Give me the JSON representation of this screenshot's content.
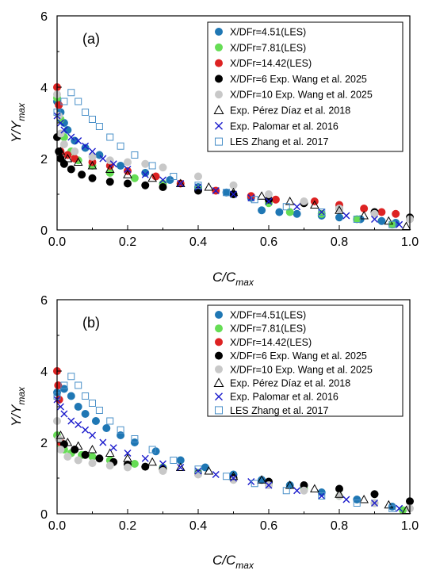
{
  "chart_data": [
    {
      "type": "scatter",
      "panel_label": "(a)",
      "xlabel_main": "C/C",
      "xlabel_sub": "max",
      "ylabel_main": "Y/Y",
      "ylabel_sub": "max",
      "xlim": [
        0,
        1
      ],
      "ylim": [
        0,
        6
      ],
      "xticks": [
        "0.0",
        "0.2",
        "0.4",
        "0.6",
        "0.8",
        "1.0"
      ],
      "yticks": [
        "0",
        "2",
        "4",
        "6"
      ],
      "legend_position": "top-right",
      "series": [
        {
          "name": "X/DFr=4.51(LES)",
          "marker": "circle",
          "color": "#1f77b4",
          "x": [
            0.0,
            0.01,
            0.02,
            0.03,
            0.05,
            0.08,
            0.12,
            0.18,
            0.25,
            0.32,
            0.4,
            0.48,
            0.55,
            0.58,
            0.63,
            0.68,
            0.75,
            0.8,
            0.86,
            0.92,
            0.96
          ],
          "y": [
            3.6,
            3.3,
            3.0,
            2.8,
            2.5,
            2.3,
            2.1,
            1.8,
            1.6,
            1.4,
            1.2,
            1.05,
            0.9,
            0.55,
            0.5,
            0.45,
            0.4,
            0.35,
            0.3,
            0.25,
            0.2
          ]
        },
        {
          "name": "X/DFr=7.81(LES)",
          "marker": "circle",
          "color": "#66dd55",
          "x": [
            0.0,
            0.01,
            0.02,
            0.04,
            0.06,
            0.1,
            0.15,
            0.22,
            0.3,
            0.4,
            0.5,
            0.6,
            0.66,
            0.75,
            0.85,
            0.95
          ],
          "y": [
            3.7,
            3.1,
            2.6,
            2.2,
            1.95,
            1.8,
            1.6,
            1.45,
            1.3,
            1.15,
            1.0,
            0.75,
            0.5,
            0.45,
            0.3,
            0.15
          ]
        },
        {
          "name": "X/DFr=14.42(LES)",
          "marker": "circle",
          "color": "#dd2222",
          "x": [
            0.0,
            0.005,
            0.01,
            0.03,
            0.05,
            0.1,
            0.15,
            0.2,
            0.28,
            0.35,
            0.45,
            0.55,
            0.62,
            0.73,
            0.8,
            0.87,
            0.92,
            0.96
          ],
          "y": [
            4.0,
            3.5,
            2.2,
            2.1,
            2.0,
            1.9,
            1.8,
            1.65,
            1.5,
            1.3,
            1.1,
            0.95,
            0.85,
            0.8,
            0.7,
            0.6,
            0.5,
            0.45
          ]
        },
        {
          "name": "X/DFr=6 Exp. Wang et al. 2025",
          "marker": "circle",
          "color": "#000000",
          "x": [
            0.0,
            0.005,
            0.01,
            0.02,
            0.04,
            0.07,
            0.1,
            0.15,
            0.2,
            0.25,
            0.3,
            0.4,
            0.5,
            0.6,
            0.7,
            0.8,
            0.9,
            1.0
          ],
          "y": [
            2.6,
            2.2,
            2.0,
            1.85,
            1.7,
            1.55,
            1.45,
            1.35,
            1.3,
            1.25,
            1.2,
            1.1,
            1.0,
            0.85,
            0.75,
            0.6,
            0.5,
            0.35
          ]
        },
        {
          "name": "X/DFr=10 Exp. Wang et al. 2025",
          "marker": "circle",
          "color": "#c8c8c8",
          "x": [
            0.0,
            0.005,
            0.01,
            0.02,
            0.05,
            0.1,
            0.15,
            0.2,
            0.25,
            0.3,
            0.4,
            0.5,
            0.6,
            0.7,
            0.8,
            0.9,
            1.0
          ],
          "y": [
            3.8,
            3.2,
            2.7,
            2.4,
            2.2,
            2.05,
            1.95,
            1.9,
            1.85,
            1.75,
            1.5,
            1.25,
            1.0,
            0.8,
            0.6,
            0.45,
            0.3
          ]
        },
        {
          "name": "Exp. Pérez Díaz et al. 2018",
          "marker": "triangle",
          "color": "#000000",
          "x": [
            0.01,
            0.03,
            0.06,
            0.1,
            0.15,
            0.2,
            0.27,
            0.35,
            0.43,
            0.5,
            0.58,
            0.66,
            0.73,
            0.8,
            0.87,
            0.94,
            0.99
          ],
          "y": [
            2.2,
            2.0,
            1.9,
            1.8,
            1.7,
            1.55,
            1.45,
            1.3,
            1.2,
            1.05,
            0.95,
            0.8,
            0.7,
            0.55,
            0.4,
            0.25,
            0.1
          ]
        },
        {
          "name": "Exp. Palomar et al. 2016",
          "marker": "x",
          "color": "#1a1acc",
          "x": [
            0.0,
            0.01,
            0.02,
            0.04,
            0.06,
            0.08,
            0.1,
            0.13,
            0.16,
            0.2,
            0.25,
            0.3,
            0.35,
            0.4,
            0.45,
            0.5,
            0.55,
            0.6,
            0.68,
            0.75,
            0.82,
            0.9,
            0.97
          ],
          "y": [
            3.2,
            3.0,
            2.8,
            2.6,
            2.5,
            2.35,
            2.2,
            2.0,
            1.85,
            1.7,
            1.55,
            1.4,
            1.3,
            1.2,
            1.1,
            1.0,
            0.9,
            0.8,
            0.65,
            0.5,
            0.4,
            0.3,
            0.15
          ]
        },
        {
          "name": "LES Zhang et al. 2017",
          "marker": "square",
          "color": "#4a90c8",
          "x": [
            0.0,
            0.02,
            0.04,
            0.06,
            0.08,
            0.1,
            0.12,
            0.15,
            0.18,
            0.22,
            0.27,
            0.33,
            0.4,
            0.48,
            0.56,
            0.65,
            0.75,
            0.85,
            0.95
          ],
          "y": [
            3.3,
            3.6,
            3.85,
            3.6,
            3.3,
            3.1,
            2.9,
            2.6,
            2.35,
            2.1,
            1.8,
            1.5,
            1.25,
            1.05,
            0.85,
            0.65,
            0.5,
            0.3,
            0.15
          ]
        }
      ]
    },
    {
      "type": "scatter",
      "panel_label": "(b)",
      "xlabel_main": "C/C",
      "xlabel_sub": "max",
      "ylabel_main": "Y/Y",
      "ylabel_sub": "max",
      "xlim": [
        0,
        1
      ],
      "ylim": [
        0,
        6
      ],
      "xticks": [
        "0.0",
        "0.2",
        "0.4",
        "0.6",
        "0.8",
        "1.0"
      ],
      "yticks": [
        "0",
        "2",
        "4",
        "6"
      ],
      "legend_position": "top-right",
      "series": [
        {
          "name": "X/DFr=4.51(LES)",
          "marker": "circle",
          "color": "#1f77b4",
          "x": [
            0.0,
            0.02,
            0.04,
            0.06,
            0.08,
            0.11,
            0.14,
            0.18,
            0.22,
            0.28,
            0.35,
            0.42,
            0.5,
            0.58,
            0.66,
            0.75,
            0.85,
            0.95
          ],
          "y": [
            3.4,
            3.5,
            3.3,
            3.0,
            2.8,
            2.6,
            2.4,
            2.2,
            2.0,
            1.75,
            1.5,
            1.3,
            1.1,
            0.95,
            0.8,
            0.6,
            0.4,
            0.2
          ]
        },
        {
          "name": "X/DFr=7.81(LES)",
          "marker": "circle",
          "color": "#66dd55",
          "x": [
            0.0,
            0.01,
            0.02,
            0.04,
            0.07,
            0.1,
            0.15,
            0.22,
            0.3,
            0.4,
            0.5,
            0.6,
            0.7,
            0.8,
            0.9,
            0.98
          ],
          "y": [
            2.2,
            1.9,
            1.8,
            1.7,
            1.65,
            1.6,
            1.5,
            1.4,
            1.3,
            1.15,
            1.0,
            0.85,
            0.7,
            0.5,
            0.3,
            0.1
          ]
        },
        {
          "name": "X/DFr=14.42(LES)",
          "marker": "circle",
          "color": "#dd2222",
          "x": [
            0.0,
            0.003,
            0.006,
            0.01
          ],
          "y": [
            4.0,
            3.6,
            3.2,
            2.0
          ]
        },
        {
          "name": "X/DFr=6 Exp. Wang et al. 2025",
          "marker": "circle",
          "color": "#000000",
          "x": [
            0.02,
            0.05,
            0.08,
            0.12,
            0.16,
            0.2,
            0.25,
            0.3,
            0.4,
            0.5,
            0.6,
            0.7,
            0.8,
            0.9,
            1.0
          ],
          "y": [
            1.95,
            1.8,
            1.65,
            1.55,
            1.45,
            1.38,
            1.32,
            1.25,
            1.12,
            1.0,
            0.9,
            0.8,
            0.7,
            0.55,
            0.35
          ]
        },
        {
          "name": "X/DFr=10 Exp. Wang et al. 2025",
          "marker": "circle",
          "color": "#c8c8c8",
          "x": [
            0.0,
            0.005,
            0.01,
            0.03,
            0.06,
            0.1,
            0.15,
            0.2,
            0.3,
            0.4,
            0.5,
            0.6,
            0.7,
            0.8,
            0.9,
            1.0
          ],
          "y": [
            2.6,
            2.1,
            1.8,
            1.6,
            1.5,
            1.42,
            1.35,
            1.3,
            1.2,
            1.1,
            0.95,
            0.8,
            0.65,
            0.5,
            0.3,
            0.15
          ]
        },
        {
          "name": "Exp. Pérez Díaz et al. 2018",
          "marker": "triangle",
          "color": "#000000",
          "x": [
            0.01,
            0.03,
            0.06,
            0.1,
            0.15,
            0.2,
            0.27,
            0.35,
            0.43,
            0.5,
            0.58,
            0.66,
            0.73,
            0.8,
            0.87,
            0.94,
            0.99
          ],
          "y": [
            2.2,
            2.0,
            1.9,
            1.8,
            1.7,
            1.55,
            1.45,
            1.3,
            1.2,
            1.05,
            0.95,
            0.8,
            0.7,
            0.55,
            0.4,
            0.25,
            0.1
          ]
        },
        {
          "name": "Exp. Palomar et al. 2016",
          "marker": "x",
          "color": "#1a1acc",
          "x": [
            0.0,
            0.01,
            0.02,
            0.04,
            0.06,
            0.08,
            0.1,
            0.13,
            0.16,
            0.2,
            0.25,
            0.3,
            0.35,
            0.4,
            0.45,
            0.5,
            0.55,
            0.6,
            0.68,
            0.75,
            0.82,
            0.9,
            0.97
          ],
          "y": [
            3.2,
            3.0,
            2.8,
            2.6,
            2.5,
            2.35,
            2.2,
            2.0,
            1.85,
            1.7,
            1.55,
            1.4,
            1.3,
            1.2,
            1.1,
            1.0,
            0.9,
            0.8,
            0.65,
            0.5,
            0.4,
            0.3,
            0.15
          ]
        },
        {
          "name": "LES Zhang et al. 2017",
          "marker": "square",
          "color": "#4a90c8",
          "x": [
            0.0,
            0.02,
            0.04,
            0.06,
            0.08,
            0.1,
            0.12,
            0.15,
            0.18,
            0.22,
            0.27,
            0.33,
            0.4,
            0.48,
            0.56,
            0.65,
            0.75,
            0.85,
            0.95
          ],
          "y": [
            3.3,
            3.6,
            3.85,
            3.6,
            3.3,
            3.1,
            2.9,
            2.6,
            2.35,
            2.1,
            1.8,
            1.5,
            1.25,
            1.05,
            0.85,
            0.65,
            0.5,
            0.3,
            0.15
          ]
        }
      ]
    }
  ]
}
